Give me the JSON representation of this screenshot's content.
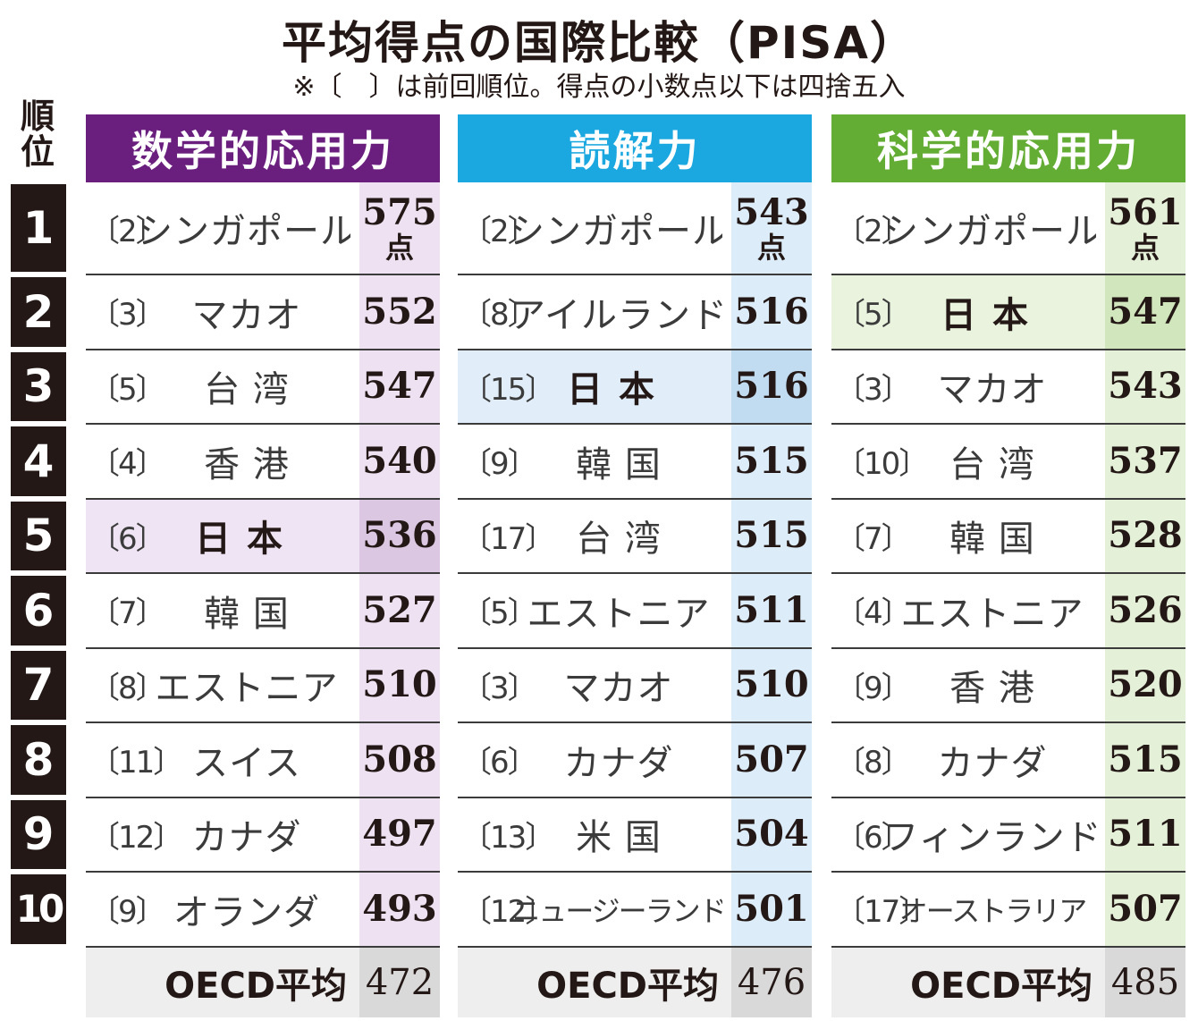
{
  "title": "平均得点の国際比較（PISA）",
  "note": "※〔　〕は前回順位。得点の小数点以下は四捨五入",
  "rank_header": [
    "順",
    "位"
  ],
  "ranks": [
    "1",
    "2",
    "3",
    "4",
    "5",
    "6",
    "7",
    "8",
    "9",
    "10"
  ],
  "score_unit": "点",
  "oecd_label": "OECD平均",
  "colors": {
    "math": "#6a1f7f",
    "reading": "#1ba7df",
    "science": "#64ad34"
  },
  "chart_data": {
    "type": "table",
    "title": "平均得点の国際比較（PISA）",
    "columns": [
      {
        "name": "数学的応用力",
        "rows": [
          {
            "rank": "1",
            "prev": "〔2〕",
            "country": "シンガポール",
            "score": "575"
          },
          {
            "rank": "2",
            "prev": "〔3〕",
            "country": "マカオ",
            "score": "552"
          },
          {
            "rank": "3",
            "prev": "〔5〕",
            "country": "台 湾",
            "score": "547"
          },
          {
            "rank": "4",
            "prev": "〔4〕",
            "country": "香 港",
            "score": "540"
          },
          {
            "rank": "5",
            "prev": "〔6〕",
            "country": "日本",
            "score": "536"
          },
          {
            "rank": "6",
            "prev": "〔7〕",
            "country": "韓 国",
            "score": "527"
          },
          {
            "rank": "7",
            "prev": "〔8〕",
            "country": "エストニア",
            "score": "510"
          },
          {
            "rank": "8",
            "prev": "〔11〕",
            "country": "スイス",
            "score": "508"
          },
          {
            "rank": "9",
            "prev": "〔12〕",
            "country": "カナダ",
            "score": "497"
          },
          {
            "rank": "10",
            "prev": "〔9〕",
            "country": "オランダ",
            "score": "493"
          }
        ],
        "oecd_average": "472"
      },
      {
        "name": "読解力",
        "rows": [
          {
            "rank": "1",
            "prev": "〔2〕",
            "country": "シンガポール",
            "score": "543"
          },
          {
            "rank": "2",
            "prev": "〔8〕",
            "country": "アイルランド",
            "score": "516"
          },
          {
            "rank": "3",
            "prev": "〔15〕",
            "country": "日本",
            "score": "516"
          },
          {
            "rank": "4",
            "prev": "〔9〕",
            "country": "韓 国",
            "score": "515"
          },
          {
            "rank": "5",
            "prev": "〔17〕",
            "country": "台 湾",
            "score": "515"
          },
          {
            "rank": "6",
            "prev": "〔5〕",
            "country": "エストニア",
            "score": "511"
          },
          {
            "rank": "7",
            "prev": "〔3〕",
            "country": "マカオ",
            "score": "510"
          },
          {
            "rank": "8",
            "prev": "〔6〕",
            "country": "カナダ",
            "score": "507"
          },
          {
            "rank": "9",
            "prev": "〔13〕",
            "country": "米 国",
            "score": "504"
          },
          {
            "rank": "10",
            "prev": "〔12〕",
            "country": "ニュージーランド",
            "score": "501"
          }
        ],
        "oecd_average": "476"
      },
      {
        "name": "科学的応用力",
        "rows": [
          {
            "rank": "1",
            "prev": "〔2〕",
            "country": "シンガポール",
            "score": "561"
          },
          {
            "rank": "2",
            "prev": "〔5〕",
            "country": "日本",
            "score": "547"
          },
          {
            "rank": "3",
            "prev": "〔3〕",
            "country": "マカオ",
            "score": "543"
          },
          {
            "rank": "4",
            "prev": "〔10〕",
            "country": "台 湾",
            "score": "537"
          },
          {
            "rank": "5",
            "prev": "〔7〕",
            "country": "韓 国",
            "score": "528"
          },
          {
            "rank": "6",
            "prev": "〔4〕",
            "country": "エストニア",
            "score": "526"
          },
          {
            "rank": "7",
            "prev": "〔9〕",
            "country": "香 港",
            "score": "520"
          },
          {
            "rank": "8",
            "prev": "〔8〕",
            "country": "カナダ",
            "score": "515"
          },
          {
            "rank": "9",
            "prev": "〔6〕",
            "country": "フィンランド",
            "score": "511"
          },
          {
            "rank": "10",
            "prev": "〔17〕",
            "country": "オーストラリア",
            "score": "507"
          }
        ],
        "oecd_average": "485"
      }
    ]
  }
}
